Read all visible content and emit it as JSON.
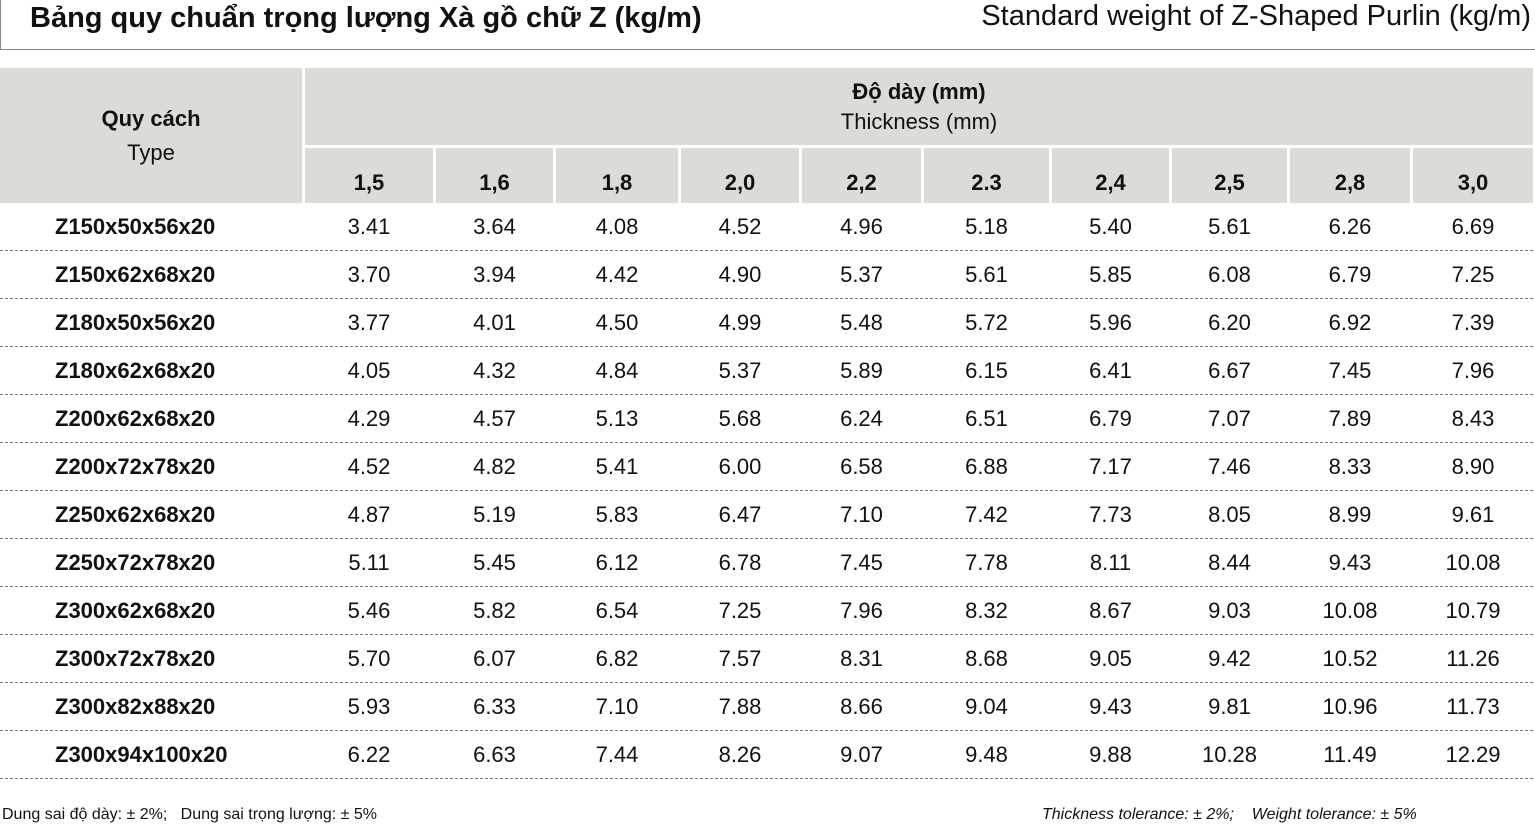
{
  "header": {
    "title": "Bảng quy chuẩn trọng lượng Xà gồ chữ Z (kg/m)",
    "title_en": "Standard weight of Z-Shaped Purlin (kg/m)"
  },
  "table": {
    "type_label": "Quy cách",
    "type_label_en": "Type",
    "thickness_label": "Độ dày (mm)",
    "thickness_label_en": "Thickness (mm)",
    "columns": [
      "1,5",
      "1,6",
      "1,8",
      "2,0",
      "2,2",
      "2.3",
      "2,4",
      "2,5",
      "2,8",
      "3,0"
    ],
    "rows": [
      [
        "Z150x50x56x20",
        "3.41",
        "3.64",
        "4.08",
        "4.52",
        "4.96",
        "5.18",
        "5.40",
        "5.61",
        "6.26",
        "6.69"
      ],
      [
        "Z150x62x68x20",
        "3.70",
        "3.94",
        "4.42",
        "4.90",
        "5.37",
        "5.61",
        "5.85",
        "6.08",
        "6.79",
        "7.25"
      ],
      [
        "Z180x50x56x20",
        "3.77",
        "4.01",
        "4.50",
        "4.99",
        "5.48",
        "5.72",
        "5.96",
        "6.20",
        "6.92",
        "7.39"
      ],
      [
        "Z180x62x68x20",
        "4.05",
        "4.32",
        "4.84",
        "5.37",
        "5.89",
        "6.15",
        "6.41",
        "6.67",
        "7.45",
        "7.96"
      ],
      [
        "Z200x62x68x20",
        "4.29",
        "4.57",
        "5.13",
        "5.68",
        "6.24",
        "6.51",
        "6.79",
        "7.07",
        "7.89",
        "8.43"
      ],
      [
        "Z200x72x78x20",
        "4.52",
        "4.82",
        "5.41",
        "6.00",
        "6.58",
        "6.88",
        "7.17",
        "7.46",
        "8.33",
        "8.90"
      ],
      [
        "Z250x62x68x20",
        "4.87",
        "5.19",
        "5.83",
        "6.47",
        "7.10",
        "7.42",
        "7.73",
        "8.05",
        "8.99",
        "9.61"
      ],
      [
        "Z250x72x78x20",
        "5.11",
        "5.45",
        "6.12",
        "6.78",
        "7.45",
        "7.78",
        "8.11",
        "8.44",
        "9.43",
        "10.08"
      ],
      [
        "Z300x62x68x20",
        "5.46",
        "5.82",
        "6.54",
        "7.25",
        "7.96",
        "8.32",
        "8.67",
        "9.03",
        "10.08",
        "10.79"
      ],
      [
        "Z300x72x78x20",
        "5.70",
        "6.07",
        "6.82",
        "7.57",
        "8.31",
        "8.68",
        "9.05",
        "9.42",
        "10.52",
        "11.26"
      ],
      [
        "Z300x82x88x20",
        "5.93",
        "6.33",
        "7.10",
        "7.88",
        "8.66",
        "9.04",
        "9.43",
        "9.81",
        "10.96",
        "11.73"
      ],
      [
        "Z300x94x100x20",
        "6.22",
        "6.63",
        "7.44",
        "8.26",
        "9.07",
        "9.48",
        "9.88",
        "10.28",
        "11.49",
        "12.29"
      ]
    ]
  },
  "footer": {
    "left": [
      "Dung sai độ dày: ± 2%;",
      "Dung sai trọng lượng: ± 5%"
    ],
    "right": [
      "Thickness tolerance: ± 2%;",
      "Weight tolerance: ± 5%"
    ]
  }
}
